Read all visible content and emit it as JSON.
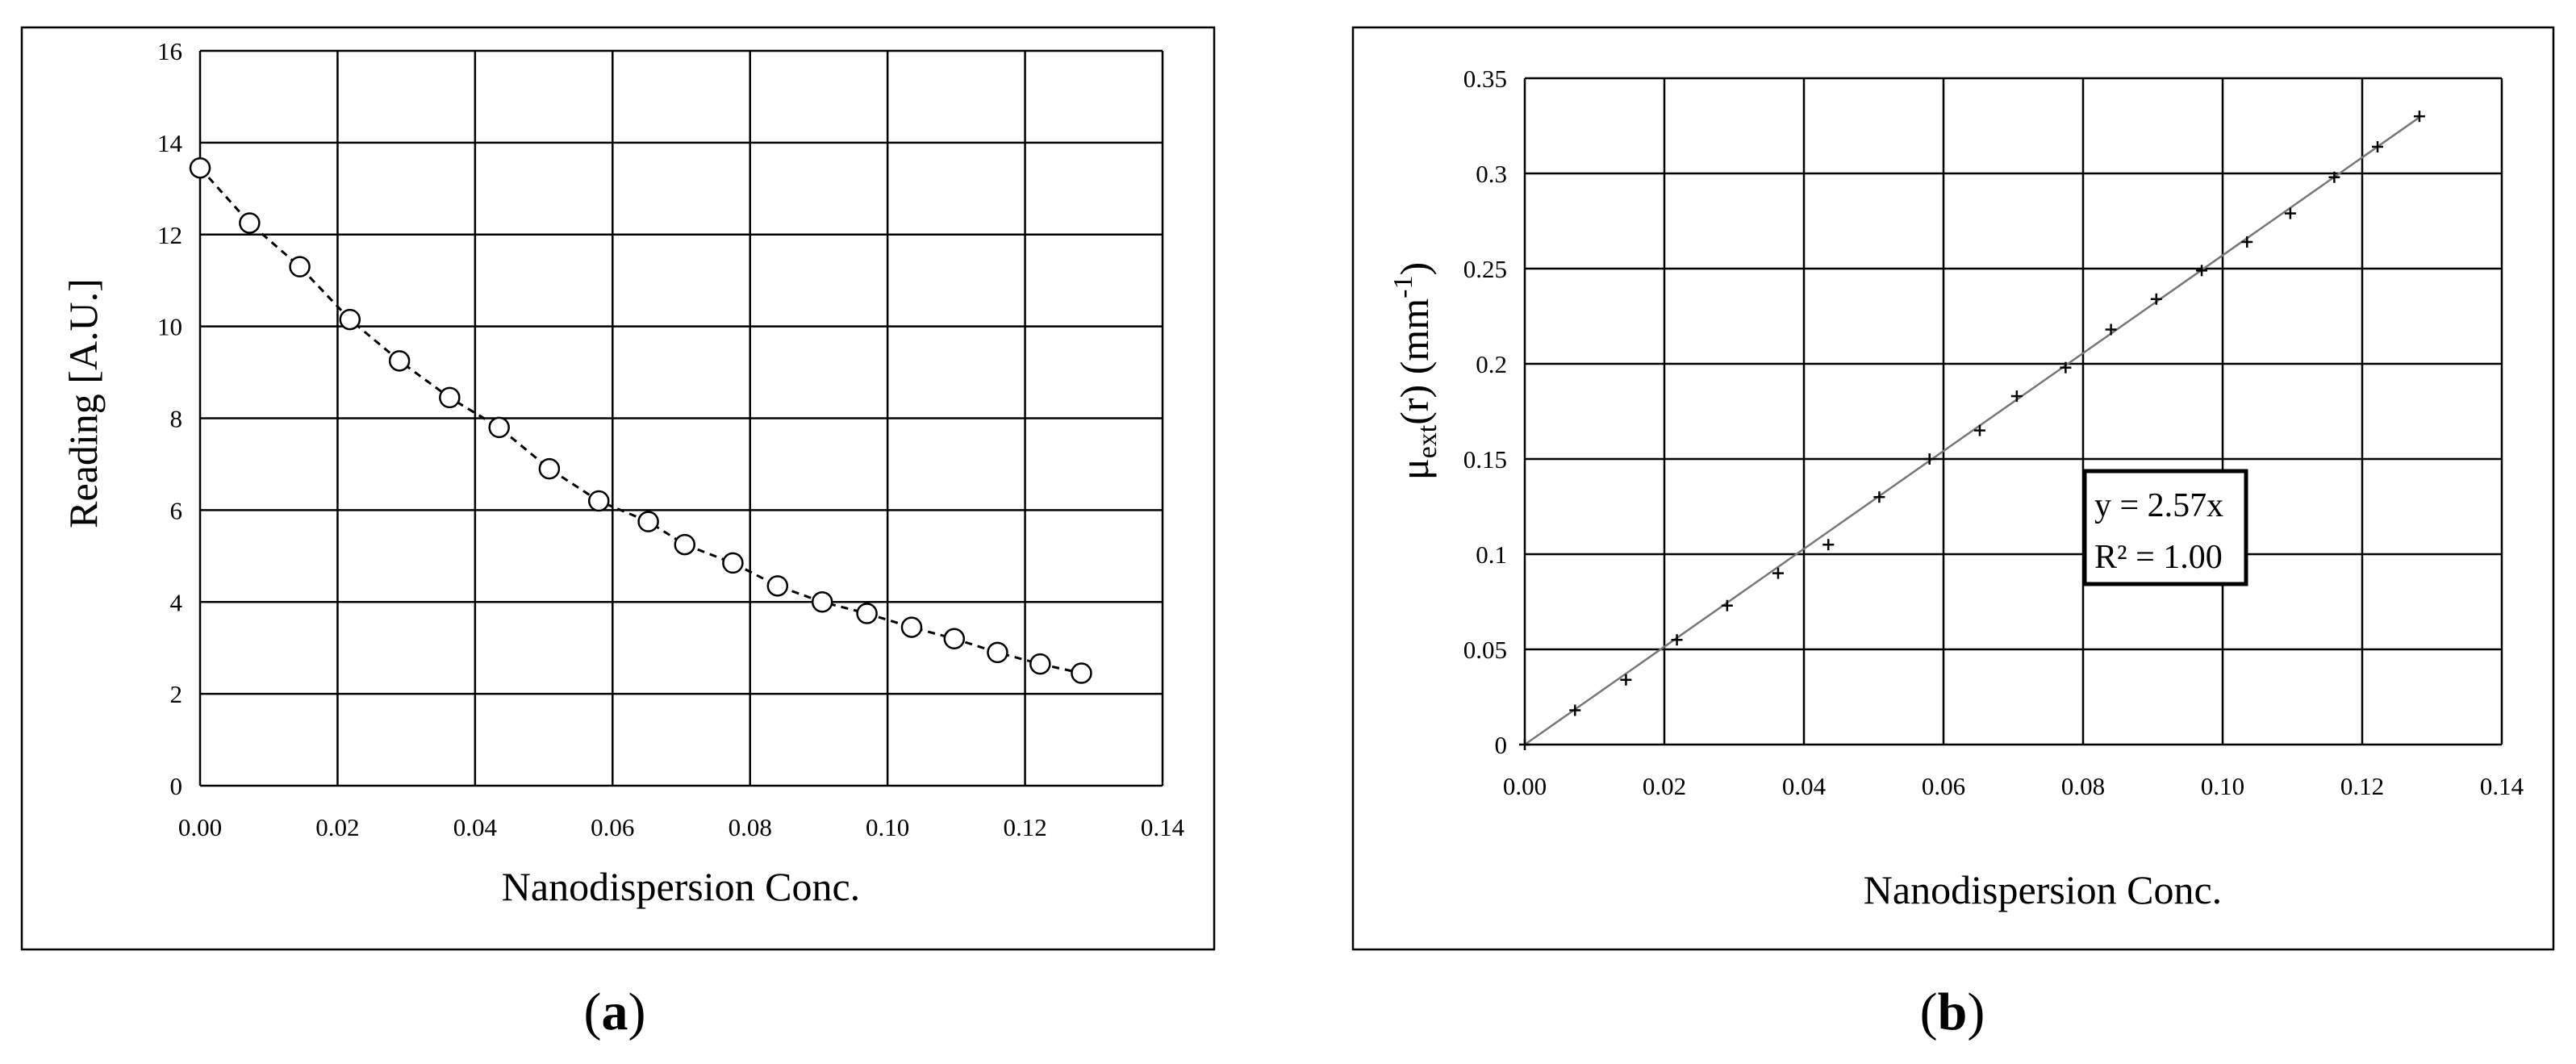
{
  "panels": [
    {
      "label_open": "(",
      "label_letter": "a",
      "label_close": ")"
    },
    {
      "label_open": "(",
      "label_letter": "b",
      "label_close": ")"
    }
  ],
  "annotation": {
    "line1": "y = 2.57x",
    "line2": "R² = 1.00"
  },
  "chart_data": [
    {
      "type": "line",
      "title": "",
      "xlabel": "Nanodispersion Conc.",
      "ylabel": "Reading [A.U.]",
      "xlim": [
        0,
        0.14
      ],
      "ylim": [
        0,
        16
      ],
      "xticks": [
        "0.00",
        "0.02",
        "0.04",
        "0.06",
        "0.08",
        "0.10",
        "0.12",
        "0.14"
      ],
      "yticks": [
        "0",
        "2",
        "4",
        "6",
        "8",
        "10",
        "12",
        "14",
        "16"
      ],
      "grid": true,
      "marker": "open-circle",
      "line_style": "dashed",
      "series": [
        {
          "x": [
            0.0,
            0.0072,
            0.0145,
            0.0218,
            0.029,
            0.0363,
            0.0435,
            0.0508,
            0.058,
            0.0652,
            0.0705,
            0.0775,
            0.084,
            0.0905,
            0.097,
            0.1035,
            0.1097,
            0.116,
            0.1222,
            0.1282
          ],
          "y": [
            13.45,
            12.25,
            11.3,
            10.15,
            9.25,
            8.45,
            7.8,
            6.9,
            6.2,
            5.75,
            5.25,
            4.85,
            4.35,
            4.0,
            3.75,
            3.45,
            3.2,
            2.9,
            2.65,
            2.45
          ]
        }
      ]
    },
    {
      "type": "scatter",
      "title": "",
      "xlabel": "Nanodispersion Conc.",
      "ylabel_main": "μ",
      "ylabel_sub": "ext",
      "ylabel_mid": "(r) (mm",
      "ylabel_sup": "-1",
      "ylabel_end": ")",
      "xlim": [
        0,
        0.14
      ],
      "ylim": [
        0,
        0.35
      ],
      "xticks": [
        "0.00",
        "0.02",
        "0.04",
        "0.06",
        "0.08",
        "0.10",
        "0.12",
        "0.14"
      ],
      "yticks": [
        "0",
        "0.05",
        "0.1",
        "0.15",
        "0.2",
        "0.25",
        "0.3",
        "0.35"
      ],
      "grid": true,
      "marker": "plus",
      "trendline": {
        "slope": 2.57,
        "intercept": 0
      },
      "series": [
        {
          "x": [
            0.0,
            0.0072,
            0.0145,
            0.0218,
            0.029,
            0.0363,
            0.0435,
            0.0508,
            0.058,
            0.0652,
            0.0705,
            0.0775,
            0.084,
            0.0905,
            0.097,
            0.1035,
            0.1097,
            0.116,
            0.1222,
            0.1282
          ],
          "y": [
            0.0,
            0.018,
            0.034,
            0.055,
            0.073,
            0.09,
            0.105,
            0.13,
            0.15,
            0.165,
            0.183,
            0.198,
            0.218,
            0.234,
            0.249,
            0.264,
            0.279,
            0.298,
            0.314,
            0.33
          ]
        }
      ]
    }
  ]
}
